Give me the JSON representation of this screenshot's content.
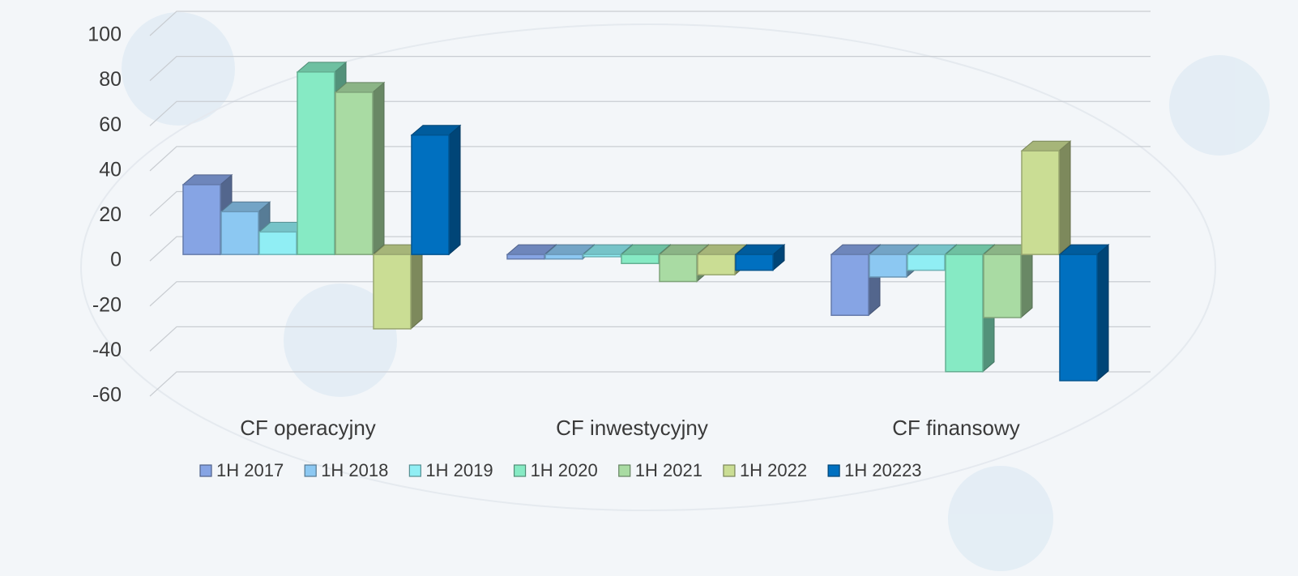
{
  "chart_data": {
    "type": "bar3d",
    "categories": [
      "CF operacyjny",
      "CF inwestycyjny",
      "CF finansowy"
    ],
    "series": [
      {
        "name": "1H 2017",
        "color": "#86a4e4",
        "values": [
          31,
          -2,
          -27
        ]
      },
      {
        "name": "1H 2018",
        "color": "#8cc8f2",
        "values": [
          19,
          -2,
          -10
        ]
      },
      {
        "name": "1H 2019",
        "color": "#90eef4",
        "values": [
          10,
          -1,
          -7
        ]
      },
      {
        "name": "1H 2020",
        "color": "#86eac4",
        "values": [
          81,
          -4,
          -52
        ]
      },
      {
        "name": "1H 2021",
        "color": "#a9dba3",
        "values": [
          72,
          -12,
          -28
        ]
      },
      {
        "name": "1H 2022",
        "color": "#cadd94",
        "values": [
          -33,
          -9,
          46
        ]
      },
      {
        "name": "1H 20223",
        "color": "#0070c0",
        "values": [
          53,
          -7,
          -56
        ]
      }
    ],
    "ylim": [
      -60,
      100
    ],
    "yticks": [
      -60,
      -40,
      -20,
      0,
      20,
      40,
      60,
      80,
      100
    ],
    "grid": true,
    "legend": "bottom"
  }
}
